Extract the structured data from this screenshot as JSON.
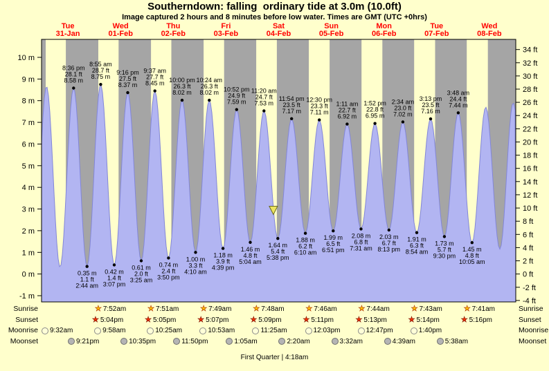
{
  "header": {
    "title": "Southerndown: falling  ordinary tide at 3.0m (10.0ft)",
    "subtitle": "Image captured 2 hours and 8 minutes before low water. Times are GMT (UTC +0hrs)"
  },
  "days": [
    {
      "dow": "Tue",
      "date": "31-Jan"
    },
    {
      "dow": "Wed",
      "date": "01-Feb"
    },
    {
      "dow": "Thu",
      "date": "02-Feb"
    },
    {
      "dow": "Fri",
      "date": "03-Feb"
    },
    {
      "dow": "Sat",
      "date": "04-Feb"
    },
    {
      "dow": "Sun",
      "date": "05-Feb"
    },
    {
      "dow": "Mon",
      "date": "06-Feb"
    },
    {
      "dow": "Tue",
      "date": "07-Feb"
    },
    {
      "dow": "Wed",
      "date": "08-Feb"
    }
  ],
  "chart_data": {
    "type": "area",
    "title": "Southerndown tide curve",
    "x_axis": {
      "start": "31-Jan 06:00",
      "end": "09-Feb 06:00",
      "span_hours": 216
    },
    "y_axis_m": {
      "unit": "m",
      "min": -1,
      "max": 10,
      "ticks": [
        10,
        9,
        8,
        7,
        6,
        5,
        4,
        3,
        2,
        1,
        0,
        -1
      ]
    },
    "y_axis_ft": {
      "unit": "ft",
      "ticks": [
        34,
        32,
        30,
        28,
        26,
        24,
        22,
        20,
        18,
        16,
        14,
        12,
        10,
        8,
        6,
        4,
        2,
        0,
        -2,
        -4
      ]
    },
    "colors": {
      "night_band": "#a5a5a5",
      "day_band": "#ffffcc",
      "tide_fill": "#b2b5f2",
      "tide_stroke": "#8286d8"
    },
    "current_marker": {
      "t": 105.6,
      "m": "3.0",
      "shape": "triangle-down",
      "color": "#ece45f"
    },
    "tide_events": [
      {
        "t": -3.67,
        "m": "0.30",
        "type": "low",
        "labeled": false
      },
      {
        "t": 2.25,
        "m": "8.66",
        "type": "high",
        "labeled": false
      },
      {
        "t": 8.42,
        "m": "0.32",
        "type": "low",
        "labeled": false
      },
      {
        "t": 14.6,
        "m": "8.58",
        "ft": "28.1",
        "time": "8:36 pm",
        "type": "high",
        "labeled": true
      },
      {
        "t": 20.73,
        "m": "0.35",
        "ft": "1.1",
        "time": "2:44 am",
        "type": "low",
        "labeled": true
      },
      {
        "t": 26.92,
        "m": "8.75",
        "ft": "28.7",
        "time": "8:55 am",
        "type": "high",
        "labeled": true
      },
      {
        "t": 33.12,
        "m": "0.42",
        "ft": "1.4",
        "time": "3:07 pm",
        "type": "low",
        "labeled": true
      },
      {
        "t": 39.27,
        "m": "8.37",
        "ft": "27.5",
        "time": "9:16 pm",
        "type": "high",
        "labeled": true
      },
      {
        "t": 45.42,
        "m": "0.61",
        "ft": "2.0",
        "time": "3:25 am",
        "type": "low",
        "labeled": true
      },
      {
        "t": 51.62,
        "m": "8.45",
        "ft": "27.7",
        "time": "9:37 am",
        "type": "high",
        "labeled": true
      },
      {
        "t": 57.83,
        "m": "0.74",
        "ft": "2.4",
        "time": "3:50 pm",
        "type": "low",
        "labeled": true
      },
      {
        "t": 64.0,
        "m": "8.02",
        "ft": "26.3",
        "time": "10:00 pm",
        "type": "high",
        "labeled": true
      },
      {
        "t": 70.17,
        "m": "1.00",
        "ft": "3.3",
        "time": "4:10 am",
        "type": "low",
        "labeled": true
      },
      {
        "t": 76.4,
        "m": "8.02",
        "ft": "26.3",
        "time": "10:24 am",
        "type": "high",
        "labeled": true
      },
      {
        "t": 82.65,
        "m": "1.18",
        "ft": "3.9",
        "time": "4:39 pm",
        "type": "low",
        "labeled": true
      },
      {
        "t": 88.87,
        "m": "7.59",
        "ft": "24.9",
        "time": "10:52 pm",
        "type": "high",
        "labeled": true
      },
      {
        "t": 95.07,
        "m": "1.46",
        "ft": "4.8",
        "time": "5:04 am",
        "type": "low",
        "labeled": true
      },
      {
        "t": 101.33,
        "m": "7.53",
        "ft": "24.7",
        "time": "11:20 am",
        "type": "high",
        "labeled": true
      },
      {
        "t": 107.63,
        "m": "1.64",
        "ft": "5.4",
        "time": "5:38 pm",
        "type": "low",
        "labeled": true
      },
      {
        "t": 113.9,
        "m": "7.17",
        "ft": "23.5",
        "time": "11:54 pm",
        "type": "high",
        "labeled": true
      },
      {
        "t": 120.17,
        "m": "1.88",
        "ft": "6.2",
        "time": "6:10 am",
        "type": "low",
        "labeled": true
      },
      {
        "t": 126.5,
        "m": "7.11",
        "ft": "23.3",
        "time": "12:30 pm",
        "type": "high",
        "labeled": true
      },
      {
        "t": 132.85,
        "m": "1.99",
        "ft": "6.5",
        "time": "6:51 pm",
        "type": "low",
        "labeled": true
      },
      {
        "t": 139.18,
        "m": "6.92",
        "ft": "22.7",
        "time": "1:11 am",
        "type": "high",
        "labeled": true
      },
      {
        "t": 145.52,
        "m": "2.08",
        "ft": "6.8",
        "time": "7:31 am",
        "type": "low",
        "labeled": true
      },
      {
        "t": 151.87,
        "m": "6.95",
        "ft": "22.8",
        "time": "1:52 pm",
        "type": "high",
        "labeled": true
      },
      {
        "t": 158.22,
        "m": "2.03",
        "ft": "6.7",
        "time": "8:13 pm",
        "type": "low",
        "labeled": true
      },
      {
        "t": 164.57,
        "m": "7.02",
        "ft": "23.0",
        "time": "2:34 am",
        "type": "high",
        "labeled": true
      },
      {
        "t": 170.9,
        "m": "1.91",
        "ft": "6.3",
        "time": "8:54 am",
        "type": "low",
        "labeled": true
      },
      {
        "t": 177.22,
        "m": "7.16",
        "ft": "23.5",
        "time": "3:13 pm",
        "type": "high",
        "labeled": true
      },
      {
        "t": 183.5,
        "m": "1.73",
        "ft": "5.7",
        "time": "9:30 pm",
        "type": "low",
        "labeled": true
      },
      {
        "t": 189.8,
        "m": "7.44",
        "ft": "24.4",
        "time": "3:48 am",
        "type": "high",
        "labeled": true
      },
      {
        "t": 196.08,
        "m": "1.45",
        "ft": "4.8",
        "time": "10:05 am",
        "type": "low",
        "labeled": true
      },
      {
        "t": 202.33,
        "m": "7.70",
        "type": "high",
        "labeled": false
      },
      {
        "t": 208.75,
        "m": "1.15",
        "type": "low",
        "labeled": false
      },
      {
        "t": 214.83,
        "m": "7.90",
        "type": "high",
        "labeled": false
      },
      {
        "t": 221.0,
        "m": "1.00",
        "type": "low",
        "labeled": false
      }
    ]
  },
  "astro": {
    "rows": [
      {
        "id": "sunrise",
        "label": "Sunrise",
        "icon": "sunrise-star",
        "times": [
          "7:52am",
          "7:51am",
          "7:49am",
          "7:48am",
          "7:46am",
          "7:44am",
          "7:43am",
          "7:41am"
        ]
      },
      {
        "id": "sunset",
        "label": "Sunset",
        "icon": "sunset-star",
        "times": [
          "5:04pm",
          "5:05pm",
          "5:07pm",
          "5:09pm",
          "5:11pm",
          "5:13pm",
          "5:14pm",
          "5:16pm"
        ]
      },
      {
        "id": "moonrise",
        "label": "Moonrise",
        "icon": "moonrise-circle",
        "times": [
          "9:32am",
          "9:58am",
          "10:25am",
          "10:53am",
          "11:25am",
          "12:03pm",
          "12:47pm",
          "1:40pm"
        ]
      },
      {
        "id": "moonset",
        "label": "Moonset",
        "icon": "moonset-circle",
        "times": [
          "9:21pm",
          "10:35pm",
          "11:50pm",
          "1:05am",
          "2:20am",
          "3:32am",
          "4:39am",
          "5:38am"
        ]
      }
    ],
    "footer": "First Quarter | 4:18am"
  }
}
